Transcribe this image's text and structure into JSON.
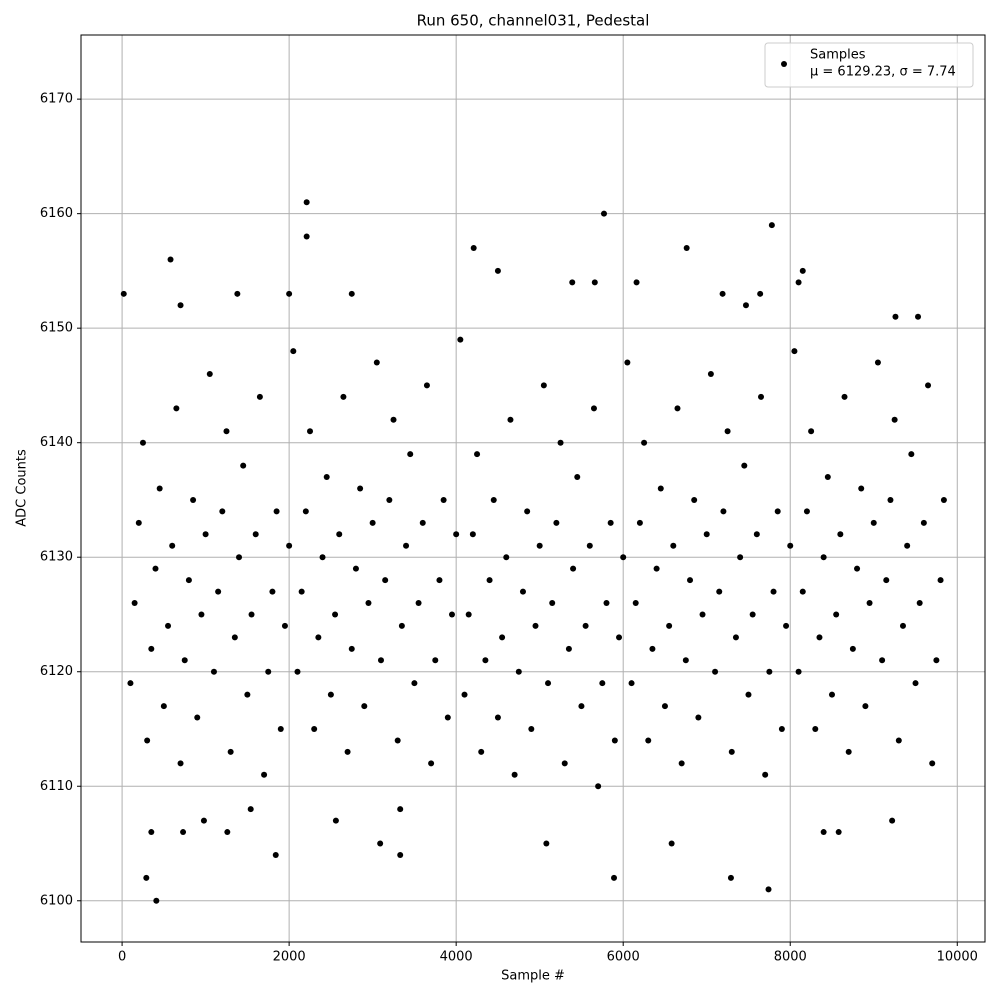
{
  "chart_data": {
    "type": "scatter",
    "title": "Run 650, channel031, Pedestal",
    "x_label": "Sample #",
    "y_label": "ADC Counts",
    "xlim": [
      -492,
      10332
    ],
    "ylim": [
      6096.4,
      6175.6
    ],
    "xticks": [
      0,
      2000,
      4000,
      6000,
      8000,
      10000
    ],
    "yticks": [
      6100,
      6110,
      6120,
      6130,
      6140,
      6150,
      6160,
      6170
    ],
    "grid": true,
    "legend": "upper right",
    "legend_stats": "μ = 6129.23, σ = 7.74",
    "series": [
      {
        "name": "Samples",
        "color": "#000000",
        "x": [
          20,
          410,
          290,
          580,
          700,
          1380,
          2000,
          1840,
          2210,
          2210,
          2750,
          3090,
          3330,
          3330,
          4210,
          4500,
          5080,
          5390,
          5660,
          5770,
          5890,
          6160,
          6580,
          6760,
          7190,
          7290,
          7470,
          7640,
          7740,
          7780,
          8100,
          8150,
          9260,
          9530,
          9220,
          8400,
          8580,
          2560,
          350,
          980,
          730,
          1260,
          1540,
          100,
          150,
          200,
          250,
          300,
          350,
          400,
          450,
          500,
          550,
          600,
          650,
          700,
          750,
          800,
          850,
          900,
          950,
          1000,
          1050,
          1100,
          1150,
          1200,
          1250,
          1300,
          1350,
          1400,
          1450,
          1500,
          1550,
          1600,
          1650,
          1700,
          1750,
          1800,
          1850,
          1900,
          1950,
          2000,
          2050,
          2100,
          2150,
          2200,
          2250,
          2300,
          2350,
          2400,
          2450,
          2500,
          2550,
          2600,
          2650,
          2700,
          2750,
          2800,
          2850,
          2900,
          2950,
          3000,
          3050,
          3100,
          3150,
          3200,
          3250,
          3300,
          3350,
          3400,
          3450,
          3500,
          3550,
          3600,
          3650,
          3700,
          3750,
          3800,
          3850,
          3900,
          3950,
          4000,
          4050,
          4100,
          4150,
          4200,
          4250,
          4300,
          4350,
          4400,
          4450,
          4500,
          4550,
          4600,
          4650,
          4700,
          4750,
          4800,
          4850,
          4900,
          4950,
          5000,
          5050,
          5100,
          5150,
          5200,
          5250,
          5300,
          5350,
          5400,
          5450,
          5500,
          5550,
          5600,
          5650,
          5700,
          5750,
          5800,
          5850,
          5900,
          5950,
          6000,
          6050,
          6100,
          6150,
          6200,
          6250,
          6300,
          6350,
          6400,
          6450,
          6500,
          6550,
          6600,
          6650,
          6700,
          6750,
          6800,
          6850,
          6900,
          6950,
          7000,
          7050,
          7100,
          7150,
          7200,
          7250,
          7300,
          7350,
          7400,
          7450,
          7500,
          7550,
          7600,
          7650,
          7700,
          7750,
          7800,
          7850,
          7900,
          7950,
          8000,
          8050,
          8100,
          8150,
          8200,
          8250,
          8300,
          8350,
          8400,
          8450,
          8500,
          8550,
          8600,
          8650,
          8700,
          8750,
          8800,
          8850,
          8900,
          8950,
          9000,
          9050,
          9100,
          9150,
          9200,
          9250,
          9300,
          9350,
          9400,
          9450,
          9500,
          9550,
          9600,
          9650,
          9700,
          9750,
          9800,
          9840
        ],
        "values": [
          6153,
          6100,
          6102,
          6156,
          6152,
          6153,
          6153,
          6104,
          6161,
          6158,
          6153,
          6105,
          6104,
          6108,
          6157,
          6155,
          6105,
          6154,
          6154,
          6160,
          6102,
          6154,
          6105,
          6157,
          6153,
          6102,
          6152,
          6153,
          6101,
          6159,
          6154,
          6155,
          6151,
          6151,
          6107,
          6106,
          6106,
          6107,
          6106,
          6107,
          6106,
          6106,
          6108,
          6119,
          6126,
          6133,
          6140,
          6114,
          6122,
          6129,
          6136,
          6117,
          6124,
          6131,
          6143,
          6112,
          6121,
          6128,
          6135,
          6116,
          6125,
          6132,
          6146,
          6120,
          6127,
          6134,
          6141,
          6113,
          6123,
          6130,
          6138,
          6118,
          6125,
          6132,
          6144,
          6111,
          6120,
          6127,
          6134,
          6115,
          6124,
          6131,
          6148,
          6120,
          6127,
          6134,
          6141,
          6115,
          6123,
          6130,
          6137,
          6118,
          6125,
          6132,
          6144,
          6113,
          6122,
          6129,
          6136,
          6117,
          6126,
          6133,
          6147,
          6121,
          6128,
          6135,
          6142,
          6114,
          6124,
          6131,
          6139,
          6119,
          6126,
          6133,
          6145,
          6112,
          6121,
          6128,
          6135,
          6116,
          6125,
          6132,
          6149,
          6118,
          6125,
          6132,
          6139,
          6113,
          6121,
          6128,
          6135,
          6116,
          6123,
          6130,
          6142,
          6111,
          6120,
          6127,
          6134,
          6115,
          6124,
          6131,
          6145,
          6119,
          6126,
          6133,
          6140,
          6112,
          6122,
          6129,
          6137,
          6117,
          6124,
          6131,
          6143,
          6110,
          6119,
          6126,
          6133,
          6114,
          6123,
          6130,
          6147,
          6119,
          6126,
          6133,
          6140,
          6114,
          6122,
          6129,
          6136,
          6117,
          6124,
          6131,
          6143,
          6112,
          6121,
          6128,
          6135,
          6116,
          6125,
          6132,
          6146,
          6120,
          6127,
          6134,
          6141,
          6113,
          6123,
          6130,
          6138,
          6118,
          6125,
          6132,
          6144,
          6111,
          6120,
          6127,
          6134,
          6115,
          6124,
          6131,
          6148,
          6120,
          6127,
          6134,
          6141,
          6115,
          6123,
          6130,
          6137,
          6118,
          6125,
          6132,
          6144,
          6113,
          6122,
          6129,
          6136,
          6117,
          6126,
          6133,
          6147,
          6121,
          6128,
          6135,
          6142,
          6114,
          6124,
          6131,
          6139,
          6119,
          6126,
          6133,
          6145,
          6112,
          6121,
          6128,
          6135
        ]
      }
    ]
  }
}
